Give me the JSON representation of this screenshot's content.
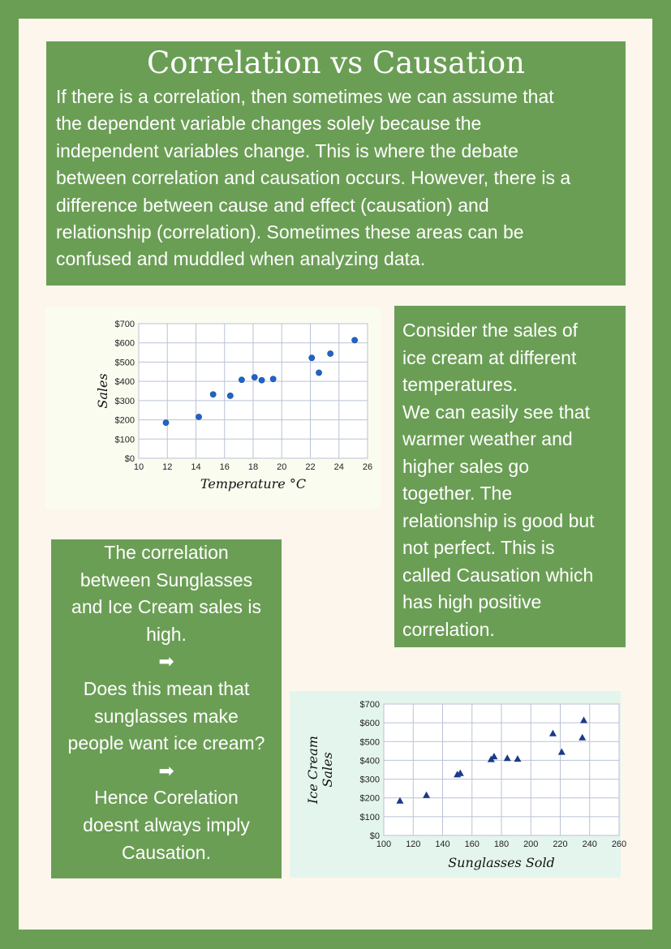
{
  "colors": {
    "green": "#6b9e55",
    "cream": "#fdf6ed",
    "point_blue": "#1f64c8",
    "triangle_navy": "#1a3a8a"
  },
  "title": "Correlation vs Causation",
  "intro": {
    "lines": [
      "If there is a correlation, then sometimes we can assume that",
      "the dependent variable changes solely because the",
      "independent variables change. This is where the debate",
      "between correlation and causation occurs. However, there is a",
      "difference between cause and effect (causation) and",
      "relationship (correlation). Sometimes these areas can be",
      "confused and muddled when analyzing data."
    ]
  },
  "consider": {
    "lines": [
      "Consider the sales of",
      "ice cream at different",
      "temperatures.",
      "We can easily see that",
      "warmer weather and",
      "higher sales go",
      "together. The",
      "relationship is good but",
      "not perfect. This is",
      "called Causation which",
      "has high positive",
      "correlation."
    ]
  },
  "sunglasses": {
    "lines": [
      "The correlation",
      "between Sunglasses",
      "and Ice Cream sales is",
      "high.",
      "➡",
      "Does this mean that",
      "sunglasses make",
      "people want ice cream?",
      "➡",
      "Hence Corelation",
      "doesnt always imply",
      "Causation."
    ]
  },
  "chart_data": [
    {
      "type": "scatter",
      "xlabel": "Temperature °C",
      "ylabel": "Sales",
      "xlim": [
        10,
        26
      ],
      "ylim": [
        0,
        700
      ],
      "xticks": [
        10,
        12,
        14,
        16,
        18,
        20,
        22,
        24,
        26
      ],
      "yticks": [
        0,
        100,
        200,
        300,
        400,
        500,
        600,
        700
      ],
      "ytick_labels": [
        "$0",
        "$100",
        "$200",
        "$300",
        "$400",
        "$500",
        "$600",
        "$700"
      ],
      "marker": "circle",
      "grid": true,
      "points": [
        [
          11.9,
          185
        ],
        [
          14.2,
          215
        ],
        [
          15.2,
          332
        ],
        [
          16.4,
          325
        ],
        [
          17.2,
          408
        ],
        [
          18.1,
          421
        ],
        [
          18.6,
          406
        ],
        [
          19.4,
          412
        ],
        [
          22.1,
          522
        ],
        [
          22.6,
          445
        ],
        [
          23.4,
          544
        ],
        [
          25.1,
          614
        ]
      ]
    },
    {
      "type": "scatter",
      "xlabel": "Sunglasses Sold",
      "ylabel": "Ice Cream Sales",
      "xlim": [
        100,
        260
      ],
      "ylim": [
        0,
        700
      ],
      "xticks": [
        100,
        120,
        140,
        160,
        180,
        200,
        220,
        240,
        260
      ],
      "yticks": [
        0,
        100,
        200,
        300,
        400,
        500,
        600,
        700
      ],
      "ytick_labels": [
        "$0",
        "$100",
        "$200",
        "$300",
        "$400",
        "$500",
        "$600",
        "$700"
      ],
      "marker": "triangle",
      "grid": true,
      "points": [
        [
          111,
          185
        ],
        [
          129,
          215
        ],
        [
          150,
          325
        ],
        [
          152,
          332
        ],
        [
          173,
          406
        ],
        [
          175,
          421
        ],
        [
          184,
          412
        ],
        [
          191,
          408
        ],
        [
          215,
          544
        ],
        [
          221,
          445
        ],
        [
          235,
          522
        ],
        [
          236,
          614
        ]
      ]
    }
  ]
}
